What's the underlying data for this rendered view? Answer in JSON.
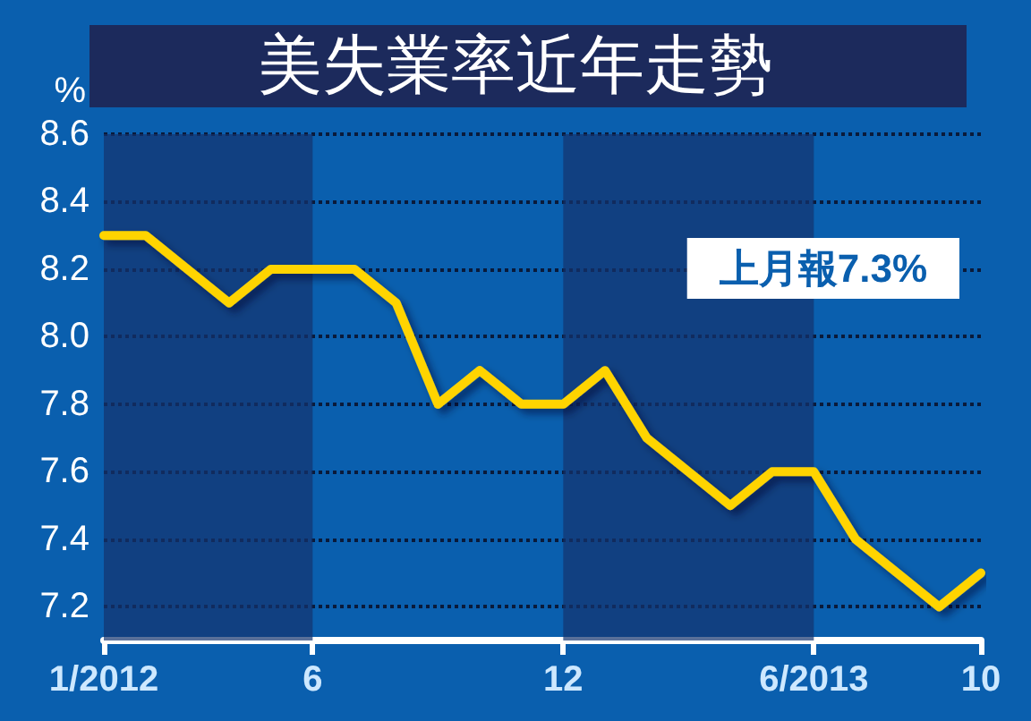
{
  "chart_data": {
    "type": "line",
    "title": "美失業率近年走勢",
    "ylabel": "%",
    "categories": [
      "1/2012",
      null,
      null,
      null,
      null,
      "6",
      null,
      null,
      null,
      null,
      null,
      "12",
      null,
      null,
      null,
      null,
      null,
      "6/2013",
      null,
      null,
      null,
      "10"
    ],
    "series": [
      {
        "color": "#ffd400",
        "values": [
          8.3,
          8.3,
          8.2,
          8.1,
          8.2,
          8.2,
          8.2,
          8.1,
          7.8,
          7.9,
          7.8,
          7.8,
          7.9,
          7.7,
          7.6,
          7.5,
          7.6,
          7.6,
          7.4,
          7.3,
          7.2,
          7.3
        ]
      }
    ],
    "ylim": [
      7.1,
      8.6
    ],
    "yticks": [
      7.2,
      7.4,
      7.6,
      7.8,
      {
        "value": 8,
        "label": "8.0"
      },
      8.2,
      8.4,
      8.6
    ],
    "bands": [
      {
        "axis": "x",
        "from": "1/2012",
        "to": "6",
        "color": "#14336e"
      },
      {
        "axis": "x",
        "from": "12",
        "to": "6/2013",
        "color": "#14336e"
      }
    ],
    "annotations": [
      "上月報7.3%"
    ],
    "grid": "y",
    "marker": "none",
    "line_style": "solid"
  }
}
